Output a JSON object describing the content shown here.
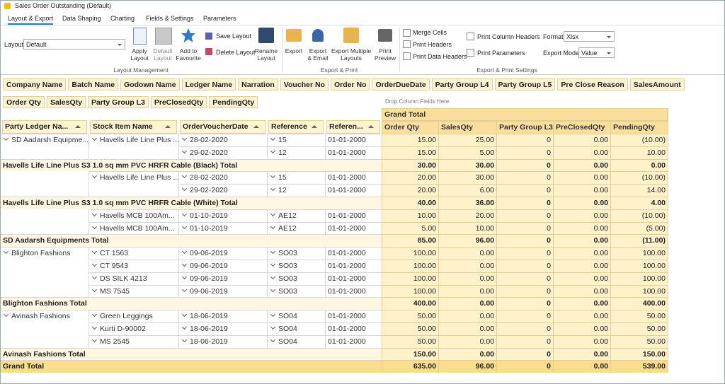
{
  "window": {
    "title": "Sales Order Outstanding (Default)"
  },
  "tabs": [
    "Layout & Export",
    "Data Shaping",
    "Charting",
    "Fields & Settings",
    "Parameters"
  ],
  "layout_management": {
    "title": "Layout Management",
    "layout_label": "Layout",
    "layout_value": "Default",
    "buttons": [
      "Apply Layout",
      "Default Layout",
      "Add to Favourite",
      "Rename Layout"
    ],
    "small_buttons": [
      "Save Layout",
      "Delete Layout"
    ]
  },
  "export_print": {
    "title": "Export & Print",
    "buttons": [
      "Export",
      "Export & Email",
      "Export Multiple Layouts",
      "Print Preview"
    ]
  },
  "settings": {
    "title": "Export & Print Settings",
    "checkboxes": [
      "Merge Cells",
      "Print Headers",
      "Print Data Headers",
      "Print Column Headers",
      "Print Parameters"
    ],
    "format_label": "Format",
    "format_value": "Xlsx",
    "export_mode_label": "Export Mode",
    "export_mode_value": "Value"
  },
  "pivot": {
    "filter_fields": [
      "Company Name",
      "Batch Name",
      "Godown Name",
      "Ledger Name",
      "Narration",
      "Voucher No",
      "Order No",
      "OrderDueDate",
      "Party Group L4",
      "Party Group L5",
      "Pre Close Reason",
      "SalesAmount"
    ],
    "data_fields": [
      "Order Qty",
      "SalesQty",
      "Party Group L3",
      "PreClosedQty",
      "PendingQty"
    ],
    "column_drop_hint": "Drop Column Fields Here",
    "column_header": "Grand Total",
    "row_fields": [
      "Party Ledger Na...",
      "Stock Item Name",
      "OrderVoucherDate",
      "Reference",
      "Referen..."
    ],
    "data_headers": [
      "Order Qty",
      "SalesQty",
      "Party Group L3",
      "PreClosedQty",
      "PendingQty"
    ],
    "rows": [
      {
        "party": "SD Aadarsh Equipme...",
        "item": "Havells Life Line Plus ...",
        "date": "28-02-2020",
        "ref": "15",
        "ref_date": "01-01-2000",
        "values": [
          "15.00",
          "25.00",
          "0",
          "0.00",
          "(10.00)"
        ]
      },
      {
        "party": null,
        "item": null,
        "date": "29-02-2020",
        "ref": "12",
        "ref_date": "01-01-2000",
        "values": [
          "15.00",
          "5.00",
          "0",
          "0.00",
          "10.00"
        ]
      },
      {
        "total": "Havells Life Line Plus S3 1.0 sq mm PVC HRFR Cable (Black) Total",
        "values": [
          "30.00",
          "30.00",
          "0",
          "0.00",
          "0.00"
        ]
      },
      {
        "party": null,
        "item": "Havells Life Line Plus ...",
        "date": "28-02-2020",
        "ref": "15",
        "ref_date": "01-01-2000",
        "values": [
          "20.00",
          "30.00",
          "0",
          "0.00",
          "(10.00)"
        ]
      },
      {
        "party": null,
        "item": null,
        "date": "29-02-2020",
        "ref": "12",
        "ref_date": "01-01-2000",
        "values": [
          "20.00",
          "6.00",
          "0",
          "0.00",
          "14.00"
        ]
      },
      {
        "total": "Havells Life Line Plus S3 1.0 sq mm PVC HRFR Cable (White) Total",
        "values": [
          "40.00",
          "36.00",
          "0",
          "0.00",
          "4.00"
        ]
      },
      {
        "party": null,
        "item": "Havells MCB 100Am...",
        "date": "01-10-2019",
        "ref": "AE12",
        "ref_date": "01-01-2000",
        "values": [
          "10.00",
          "20.00",
          "0",
          "0.00",
          "(10.00)"
        ]
      },
      {
        "party": null,
        "item": "Havells MCB 100Am...",
        "date": "01-10-2019",
        "ref": "AE12",
        "ref_date": "01-01-2000",
        "values": [
          "5.00",
          "10.00",
          "0",
          "0.00",
          "(5.00)"
        ]
      },
      {
        "total": "SD Aadarsh Equipments Total",
        "values": [
          "85.00",
          "96.00",
          "0",
          "0.00",
          "(11.00)"
        ]
      },
      {
        "party": "Blighton Fashions",
        "item": "CT 1563",
        "date": "09-06-2019",
        "ref": "SO03",
        "ref_date": "01-01-2000",
        "values": [
          "100.00",
          "0.00",
          "0",
          "0.00",
          "100.00"
        ]
      },
      {
        "party": null,
        "item": "CT 9543",
        "date": "09-06-2019",
        "ref": "SO03",
        "ref_date": "01-01-2000",
        "values": [
          "100.00",
          "0.00",
          "0",
          "0.00",
          "100.00"
        ]
      },
      {
        "party": null,
        "item": "DS SILK 4213",
        "date": "09-06-2019",
        "ref": "SO03",
        "ref_date": "01-01-2000",
        "values": [
          "100.00",
          "0.00",
          "0",
          "0.00",
          "100.00"
        ]
      },
      {
        "party": null,
        "item": "MS 7545",
        "date": "09-06-2019",
        "ref": "SO03",
        "ref_date": "01-01-2000",
        "values": [
          "100.00",
          "0.00",
          "0",
          "0.00",
          "100.00"
        ]
      },
      {
        "total": "Blighton Fashions Total",
        "values": [
          "400.00",
          "0.00",
          "0",
          "0.00",
          "400.00"
        ]
      },
      {
        "party": "Avinash Fashions",
        "item": "Green Leggings",
        "date": "18-06-2019",
        "ref": "SO04",
        "ref_date": "01-01-2000",
        "values": [
          "50.00",
          "0.00",
          "0",
          "0.00",
          "50.00"
        ]
      },
      {
        "party": null,
        "item": "Kurti D-90002",
        "date": "18-06-2019",
        "ref": "SO04",
        "ref_date": "01-01-2000",
        "values": [
          "50.00",
          "0.00",
          "0",
          "0.00",
          "50.00"
        ]
      },
      {
        "party": null,
        "item": "MS 2545",
        "date": "18-06-2019",
        "ref": "SO04",
        "ref_date": "01-01-2000",
        "values": [
          "50.00",
          "0.00",
          "0",
          "0.00",
          "50.00"
        ]
      },
      {
        "total": "Avinash Fashions Total",
        "values": [
          "150.00",
          "0.00",
          "0",
          "0.00",
          "150.00"
        ]
      },
      {
        "total": "Grand Total",
        "values": [
          "635.00",
          "96.00",
          "0",
          "0.00",
          "539.00"
        ]
      }
    ]
  }
}
